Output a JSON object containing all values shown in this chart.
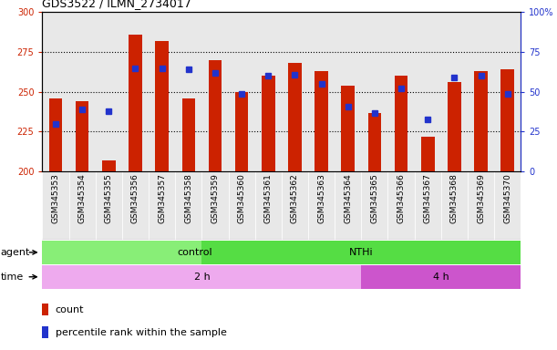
{
  "title": "GDS3522 / ILMN_2734017",
  "samples": [
    "GSM345353",
    "GSM345354",
    "GSM345355",
    "GSM345356",
    "GSM345357",
    "GSM345358",
    "GSM345359",
    "GSM345360",
    "GSM345361",
    "GSM345362",
    "GSM345363",
    "GSM345364",
    "GSM345365",
    "GSM345366",
    "GSM345367",
    "GSM345368",
    "GSM345369",
    "GSM345370"
  ],
  "count_values": [
    246,
    244,
    207,
    286,
    282,
    246,
    270,
    250,
    260,
    268,
    263,
    254,
    237,
    260,
    222,
    256,
    263,
    264
  ],
  "percentile_values": [
    30,
    39,
    38,
    65,
    65,
    64,
    62,
    49,
    60,
    61,
    55,
    41,
    37,
    52,
    33,
    59,
    60,
    49
  ],
  "bar_bottom": 200,
  "ylim_left": [
    200,
    300
  ],
  "yticks_left": [
    200,
    225,
    250,
    275,
    300
  ],
  "yticks_right": [
    0,
    25,
    50,
    75,
    100
  ],
  "bar_color": "#CC2200",
  "dot_color": "#2233CC",
  "bar_width": 0.5,
  "agent_control_count": 6,
  "time_2h_count": 12,
  "control_color": "#88EE77",
  "nthi_color": "#55DD44",
  "time_2h_color": "#EEAAEE",
  "time_4h_color": "#CC55CC",
  "plot_bg": "#FFFFFF",
  "col_bg_odd": "#E8E8E8",
  "col_bg_even": "#D8D8D8",
  "title_fontsize": 9,
  "tick_fontsize": 7,
  "label_fontsize": 8
}
